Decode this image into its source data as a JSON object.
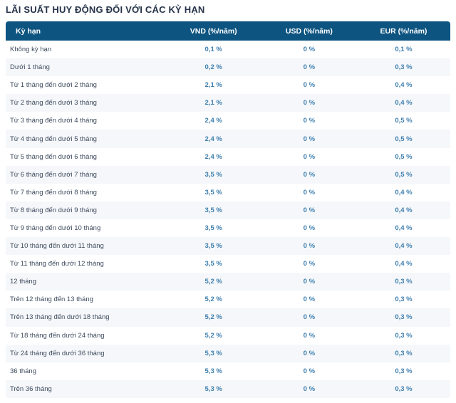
{
  "title": "LÃI SUẤT HUY ĐỘNG ĐỐI VỚI CÁC KỲ HẠN",
  "colors": {
    "header_bg": "#0d5480",
    "header_text": "#ffffff",
    "title_color": "#263349",
    "term_color": "#3e4b5e",
    "value_color": "#3e7fae",
    "stripe_bg": "#f5f7fa",
    "page_bg": "#ffffff"
  },
  "table": {
    "columns": [
      {
        "key": "term",
        "label": "Kỳ hạn"
      },
      {
        "key": "vnd",
        "label": "VND (%/năm)"
      },
      {
        "key": "usd",
        "label": "USD (%/năm)"
      },
      {
        "key": "eur",
        "label": "EUR (%/năm)"
      }
    ],
    "rows": [
      {
        "term": "Không kỳ hạn",
        "vnd": "0,1 %",
        "usd": "0 %",
        "eur": "0,1 %"
      },
      {
        "term": "Dưới 1 tháng",
        "vnd": "0,2 %",
        "usd": "0 %",
        "eur": "0,3 %"
      },
      {
        "term": "Từ 1 tháng đến dưới 2 tháng",
        "vnd": "2,1 %",
        "usd": "0 %",
        "eur": "0,4 %"
      },
      {
        "term": "Từ 2 tháng đến dưới 3 tháng",
        "vnd": "2,1 %",
        "usd": "0 %",
        "eur": "0,4 %"
      },
      {
        "term": "Từ 3 tháng đến dưới 4 tháng",
        "vnd": "2,4 %",
        "usd": "0 %",
        "eur": "0,5 %"
      },
      {
        "term": "Từ 4 tháng đến dưới 5 tháng",
        "vnd": "2,4 %",
        "usd": "0 %",
        "eur": "0,5 %"
      },
      {
        "term": "Từ 5 tháng đến dưới 6 tháng",
        "vnd": "2,4 %",
        "usd": "0 %",
        "eur": "0,5 %"
      },
      {
        "term": "Từ 6 tháng đến dưới 7 tháng",
        "vnd": "3,5 %",
        "usd": "0 %",
        "eur": "0,5 %"
      },
      {
        "term": "Từ 7 tháng đến dưới 8 tháng",
        "vnd": "3,5 %",
        "usd": "0 %",
        "eur": "0,4 %"
      },
      {
        "term": "Từ 8 tháng đến dưới 9 tháng",
        "vnd": "3,5 %",
        "usd": "0 %",
        "eur": "0,4 %"
      },
      {
        "term": "Từ 9 tháng đến dưới 10 tháng",
        "vnd": "3,5 %",
        "usd": "0 %",
        "eur": "0,4 %"
      },
      {
        "term": "Từ 10 tháng đến dưới 11 tháng",
        "vnd": "3,5 %",
        "usd": "0 %",
        "eur": "0,4 %"
      },
      {
        "term": "Từ 11 tháng đến dưới 12 tháng",
        "vnd": "3,5 %",
        "usd": "0 %",
        "eur": "0,4 %"
      },
      {
        "term": "12 tháng",
        "vnd": "5,2 %",
        "usd": "0 %",
        "eur": "0,3 %"
      },
      {
        "term": "Trên 12 tháng đến 13 tháng",
        "vnd": "5,2 %",
        "usd": "0 %",
        "eur": "0,3 %"
      },
      {
        "term": "Trên 13 tháng đến dưới 18 tháng",
        "vnd": "5,2 %",
        "usd": "0 %",
        "eur": "0,3 %"
      },
      {
        "term": "Từ 18 tháng đến dưới 24 tháng",
        "vnd": "5,2 %",
        "usd": "0 %",
        "eur": "0,3 %"
      },
      {
        "term": "Từ 24 tháng đến dưới 36 tháng",
        "vnd": "5,3 %",
        "usd": "0 %",
        "eur": "0,3 %"
      },
      {
        "term": "36 tháng",
        "vnd": "5,3 %",
        "usd": "0 %",
        "eur": "0,3 %"
      },
      {
        "term": "Trên 36 tháng",
        "vnd": "5,3 %",
        "usd": "0 %",
        "eur": "0,3 %"
      }
    ]
  }
}
